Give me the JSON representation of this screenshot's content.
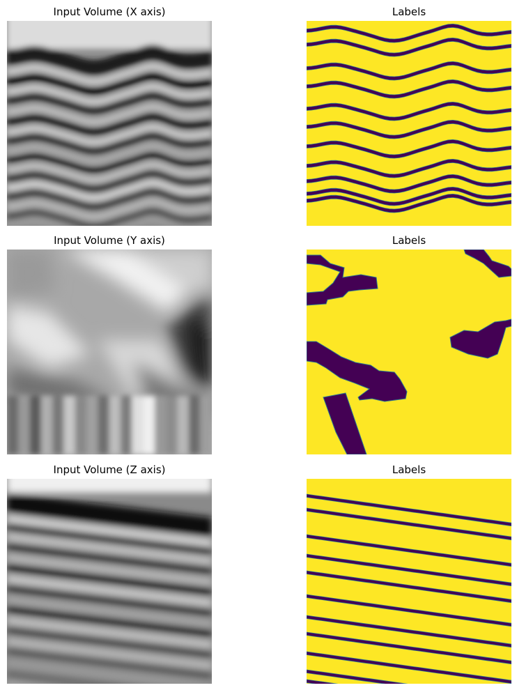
{
  "titles": {
    "x_input": "Input Volume (X axis)",
    "x_labels": "Labels",
    "y_input": "Input Volume (Y axis)",
    "y_labels": "Labels",
    "z_input": "Input Volume (Z axis)",
    "z_labels": "Labels"
  },
  "colormaps": {
    "input": "grayscale",
    "labels": "viridis"
  },
  "colors": {
    "label_background": "#fde725",
    "label_foreground": "#440154",
    "label_edge": "#2a788e"
  }
}
